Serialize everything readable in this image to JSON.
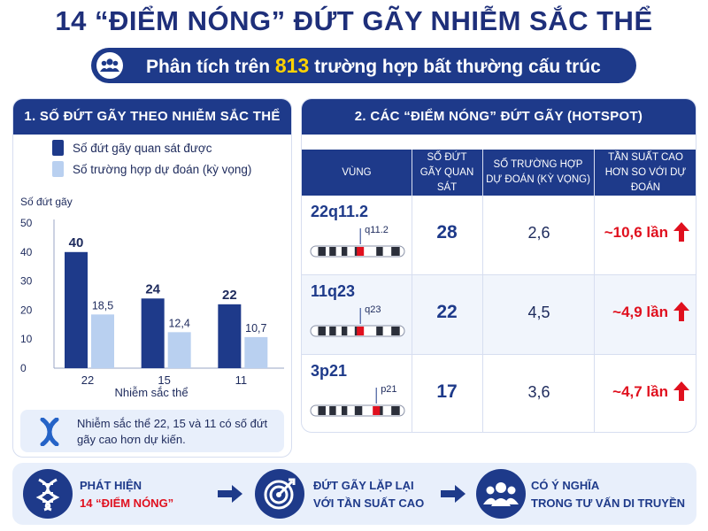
{
  "title": "14 “ĐIỂM NÓNG” ĐỨT GÃY NHIỄM SẮC THỂ",
  "subtitle": {
    "before": "Phân tích trên ",
    "highlight": "813",
    "after": " trường hợp bất thường cấu trúc",
    "icon": "people-icon"
  },
  "left_panel": {
    "heading": "1. SỐ ĐỨT GÃY THEO NHIỄM SẮC THỂ",
    "note": "Nhiễm sắc thể 22, 15 và 11 có số đứt gãy cao hơn dự kiến.",
    "note_icon": "chromosome-icon"
  },
  "chart_data": {
    "type": "bar",
    "categories": [
      "22",
      "15",
      "11"
    ],
    "series": [
      {
        "name": "Số đứt gãy quan sát được",
        "values": [
          40,
          24,
          22
        ],
        "labels": [
          "40",
          "24",
          "22"
        ],
        "color": "#1e3a8a"
      },
      {
        "name": "Số trường hợp dự đoán (kỳ vọng)",
        "values": [
          18.5,
          12.4,
          10.7
        ],
        "labels": [
          "18,5",
          "12,4",
          "10,7"
        ],
        "color": "#b9d0f0"
      }
    ],
    "ylabel": "Số đứt gãy",
    "xlabel": "Nhiễm sắc thể",
    "ylim": [
      0,
      50
    ],
    "yticks": [
      0,
      10,
      20,
      30,
      40,
      50
    ],
    "legend": "top-left",
    "grid": false
  },
  "right_panel": {
    "heading": "2. CÁC “ĐIỂM NÓNG” ĐỨT GÃY (HOTSPOT)",
    "columns": [
      "VÙNG",
      "SỐ ĐỨT GÃY QUAN SÁT",
      "SỐ TRƯỜNG HỢP DỰ ĐOÁN (KỲ VỌNG)",
      "TẦN SUẤT CAO HƠN SO VỚI DỰ ĐOÁN"
    ],
    "rows": [
      {
        "region": "22q11.2",
        "band": "q11.2",
        "observed": "28",
        "expected": "2,6",
        "ratio": "~10,6 lần"
      },
      {
        "region": "11q23",
        "band": "q23",
        "observed": "22",
        "expected": "4,5",
        "ratio": "~4,9 lần"
      },
      {
        "region": "3p21",
        "band": "p21",
        "observed": "17",
        "expected": "3,6",
        "ratio": "~4,7 lần"
      }
    ],
    "arrow_icon": "arrow-up-icon",
    "accent": "#e0101e"
  },
  "bottom": {
    "steps": [
      {
        "line1": "PHÁT HIỆN",
        "line2": "14 “ĐIỂM NÓNG”",
        "icon": "dna-icon"
      },
      {
        "line1": "ĐỨT GÃY LẶP LẠI",
        "line2": "VỚI TẦN SUẤT CAO",
        "icon": "target-icon"
      },
      {
        "line1": "CÓ Ý NGHĨA",
        "line2": "TRONG TƯ VẤN DI TRUYỀN",
        "icon": "group-icon"
      }
    ],
    "arrow_icon": "arrow-right-icon"
  },
  "colors": {
    "primary": "#1e3a8a",
    "light": "#b9d0f0",
    "highlight": "#ffd200",
    "alert": "#e0101e",
    "panel_bg": "#e8effb"
  }
}
